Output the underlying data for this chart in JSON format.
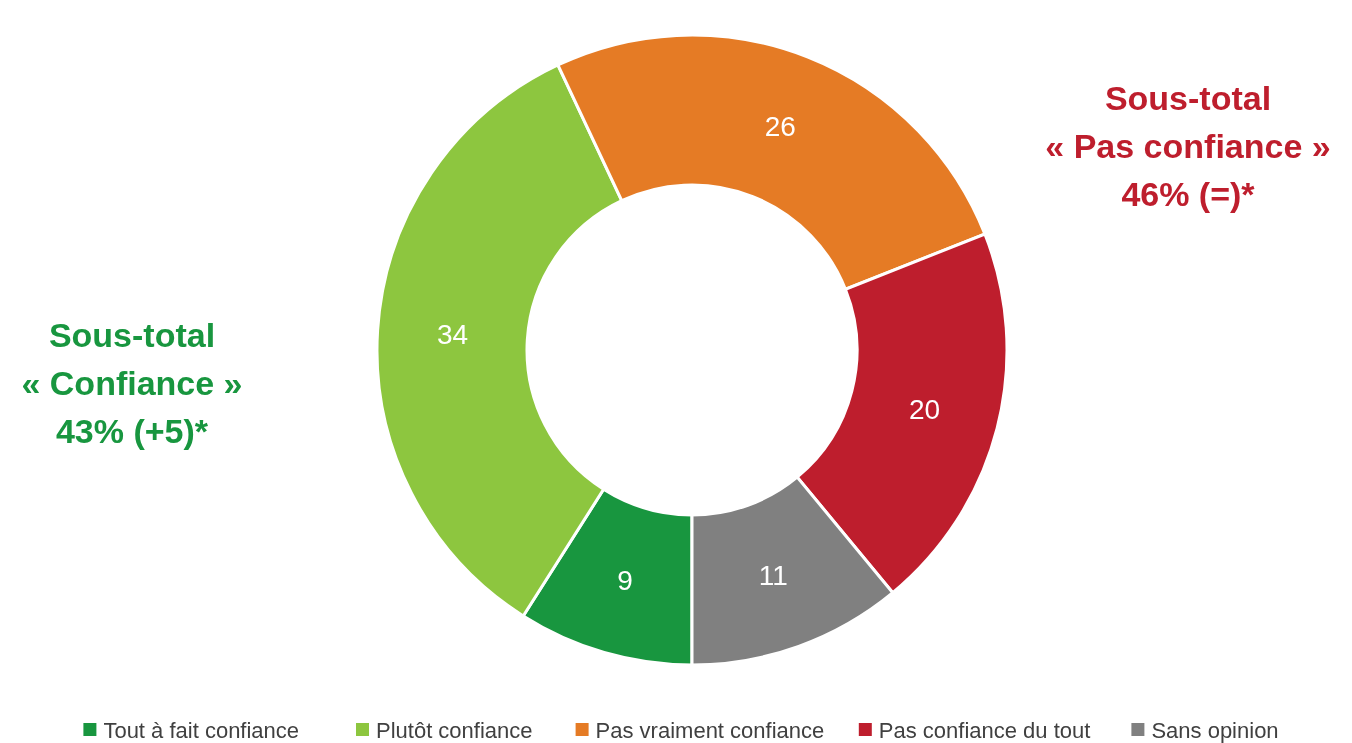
{
  "chart_data": {
    "type": "donut",
    "categories": [
      "Tout à fait confiance",
      "Plutôt confiance",
      "Pas vraiment confiance",
      "Pas confiance du tout",
      "Sans opinion"
    ],
    "values": [
      9,
      34,
      26,
      20,
      11
    ],
    "colors": [
      "#18963f",
      "#8dc63f",
      "#e57b25",
      "#be1e2d",
      "#808080"
    ],
    "data_labels": true,
    "legend": "bottom",
    "annotations": [
      "Sous-total\n« Confiance »\n43% (+5)*",
      "Sous-total\n« Pas confiance »\n46% (=)*"
    ]
  }
}
